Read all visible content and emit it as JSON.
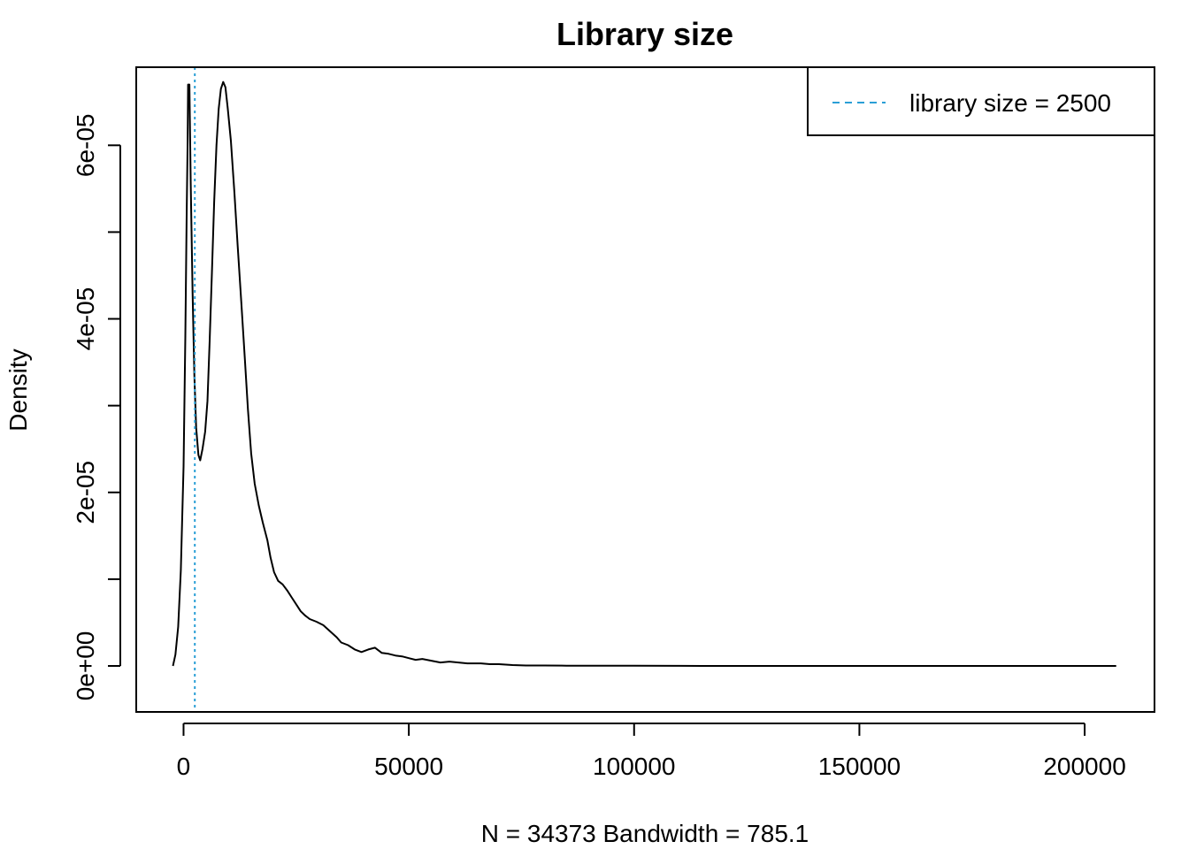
{
  "chart_data": {
    "type": "line",
    "title": "Library size",
    "xlabel": "N = 34373   Bandwidth = 785.1",
    "ylabel": "Density",
    "xlim": [
      -10500,
      215500
    ],
    "ylim": [
      -5.3e-06,
      6.9e-05
    ],
    "x_ticks": [
      0,
      50000,
      100000,
      150000,
      200000
    ],
    "x_tick_labels": [
      "0",
      "50000",
      "100000",
      "150000",
      "200000"
    ],
    "y_ticks": [
      0,
      1e-05,
      2e-05,
      3e-05,
      4e-05,
      5e-05,
      6e-05
    ],
    "y_tick_labels": [
      "0e+00",
      "",
      "2e-05",
      "",
      "4e-05",
      "",
      "6e-05"
    ],
    "grid": false,
    "series": [
      {
        "color": "#000000",
        "points": [
          [
            -2360,
            0.0
          ],
          [
            -1800,
            1.3e-06
          ],
          [
            -1200,
            4.5e-06
          ],
          [
            -600,
            1.1e-05
          ],
          [
            0,
            2.3e-05
          ],
          [
            400,
            3.8e-05
          ],
          [
            700,
            5.2e-05
          ],
          [
            900,
            6.05e-05
          ],
          [
            1000,
            6.7e-05
          ],
          [
            1100,
            6.7e-05
          ],
          [
            1300,
            6.7e-05
          ],
          [
            1600,
            5.55e-05
          ],
          [
            2000,
            4.3e-05
          ],
          [
            2400,
            3.35e-05
          ],
          [
            2800,
            2.75e-05
          ],
          [
            3300,
            2.43e-05
          ],
          [
            3700,
            2.37e-05
          ],
          [
            4200,
            2.5e-05
          ],
          [
            4800,
            2.7e-05
          ],
          [
            5300,
            3.05e-05
          ],
          [
            5800,
            3.75e-05
          ],
          [
            6300,
            4.55e-05
          ],
          [
            6800,
            5.35e-05
          ],
          [
            7300,
            6e-05
          ],
          [
            7800,
            6.42e-05
          ],
          [
            8300,
            6.65e-05
          ],
          [
            8800,
            6.73e-05
          ],
          [
            9300,
            6.67e-05
          ],
          [
            9800,
            6.43e-05
          ],
          [
            10500,
            6.05e-05
          ],
          [
            11300,
            5.45e-05
          ],
          [
            12000,
            4.85e-05
          ],
          [
            12800,
            4.2e-05
          ],
          [
            13600,
            3.55e-05
          ],
          [
            14300,
            2.95e-05
          ],
          [
            15000,
            2.45e-05
          ],
          [
            15800,
            2.1e-05
          ],
          [
            16700,
            1.85e-05
          ],
          [
            17600,
            1.65e-05
          ],
          [
            18600,
            1.45e-05
          ],
          [
            19300,
            1.25e-05
          ],
          [
            20100,
            1.08e-05
          ],
          [
            21000,
            9.8e-06
          ],
          [
            22000,
            9.4e-06
          ],
          [
            23000,
            8.7e-06
          ],
          [
            24000,
            7.9e-06
          ],
          [
            25000,
            7.1e-06
          ],
          [
            26000,
            6.3e-06
          ],
          [
            27000,
            5.8e-06
          ],
          [
            28000,
            5.4e-06
          ],
          [
            29500,
            5.1e-06
          ],
          [
            31000,
            4.7e-06
          ],
          [
            32500,
            4e-06
          ],
          [
            34000,
            3.3e-06
          ],
          [
            35000,
            2.7e-06
          ],
          [
            36500,
            2.4e-06
          ],
          [
            38000,
            1.9e-06
          ],
          [
            39500,
            1.6e-06
          ],
          [
            41000,
            1.9e-06
          ],
          [
            42500,
            2.1e-06
          ],
          [
            44000,
            1.5e-06
          ],
          [
            45500,
            1.4e-06
          ],
          [
            47000,
            1.2e-06
          ],
          [
            48500,
            1.1e-06
          ],
          [
            50000,
            9e-07
          ],
          [
            51500,
            7e-07
          ],
          [
            53000,
            8e-07
          ],
          [
            55000,
            6e-07
          ],
          [
            57000,
            4e-07
          ],
          [
            59000,
            5e-07
          ],
          [
            61000,
            4e-07
          ],
          [
            63000,
            3e-07
          ],
          [
            66000,
            3e-07
          ],
          [
            68000,
            2e-07
          ],
          [
            70000,
            2e-07
          ],
          [
            73000,
            1e-07
          ],
          [
            76000,
            5e-08
          ],
          [
            80000,
            5e-08
          ],
          [
            85000,
            3e-08
          ],
          [
            90000,
            2e-08
          ],
          [
            100000,
            2e-08
          ],
          [
            110000,
            1e-08
          ],
          [
            115000,
            0.0
          ],
          [
            150000,
            0.0
          ],
          [
            207000,
            0.0
          ]
        ]
      }
    ],
    "reference_line": {
      "x": 2500,
      "color": "#2a9fd6",
      "style": "dotted"
    },
    "legend": {
      "position": "top-right",
      "entries": [
        {
          "label": "library size = 2500",
          "color": "#2a9fd6",
          "style": "dashed"
        }
      ]
    }
  }
}
